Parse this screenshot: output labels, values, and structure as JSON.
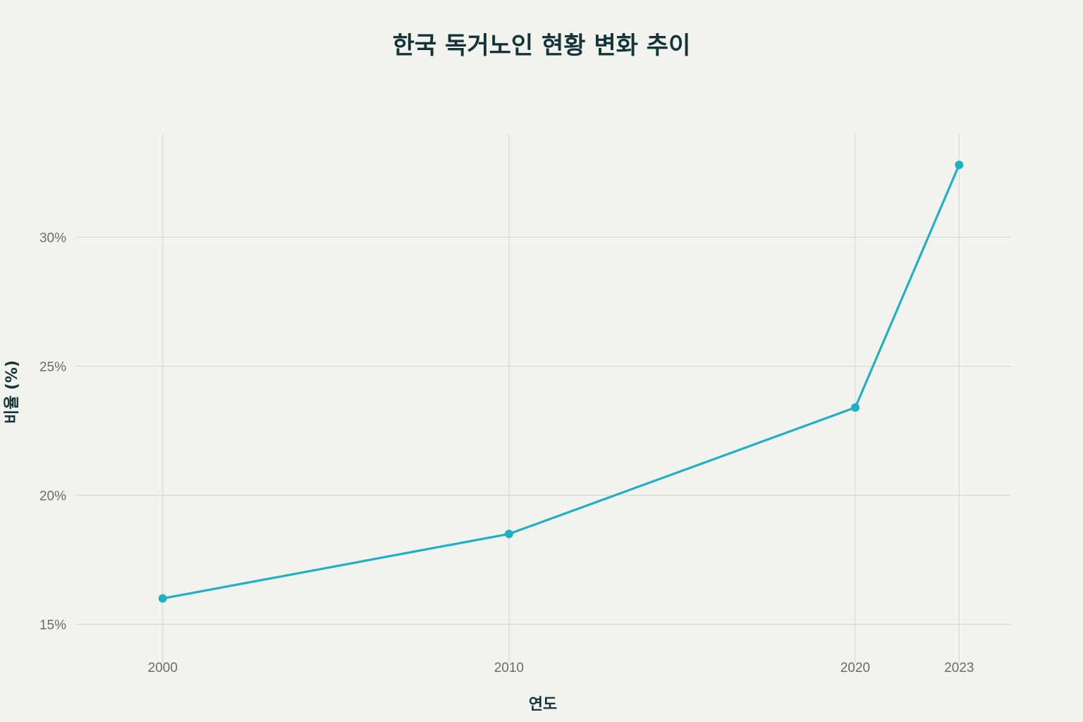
{
  "chart_data": {
    "type": "line",
    "title": "한국 독거노인 현황 변화 추이",
    "xlabel": "연도",
    "ylabel": "비율 (%)",
    "x": [
      2000,
      2010,
      2020,
      2023
    ],
    "x_tick_labels": [
      "2000",
      "2010",
      "2020",
      "2023"
    ],
    "y_ticks": [
      15,
      20,
      25,
      30
    ],
    "y_tick_labels": [
      "15%",
      "20%",
      "25%",
      "30%"
    ],
    "xlim": [
      1997.5,
      2024.5
    ],
    "ylim": [
      14,
      34
    ],
    "grid": true,
    "series": [
      {
        "values": [
          16.0,
          18.5,
          23.4,
          32.8
        ],
        "color": "#1fb0c4"
      }
    ]
  }
}
